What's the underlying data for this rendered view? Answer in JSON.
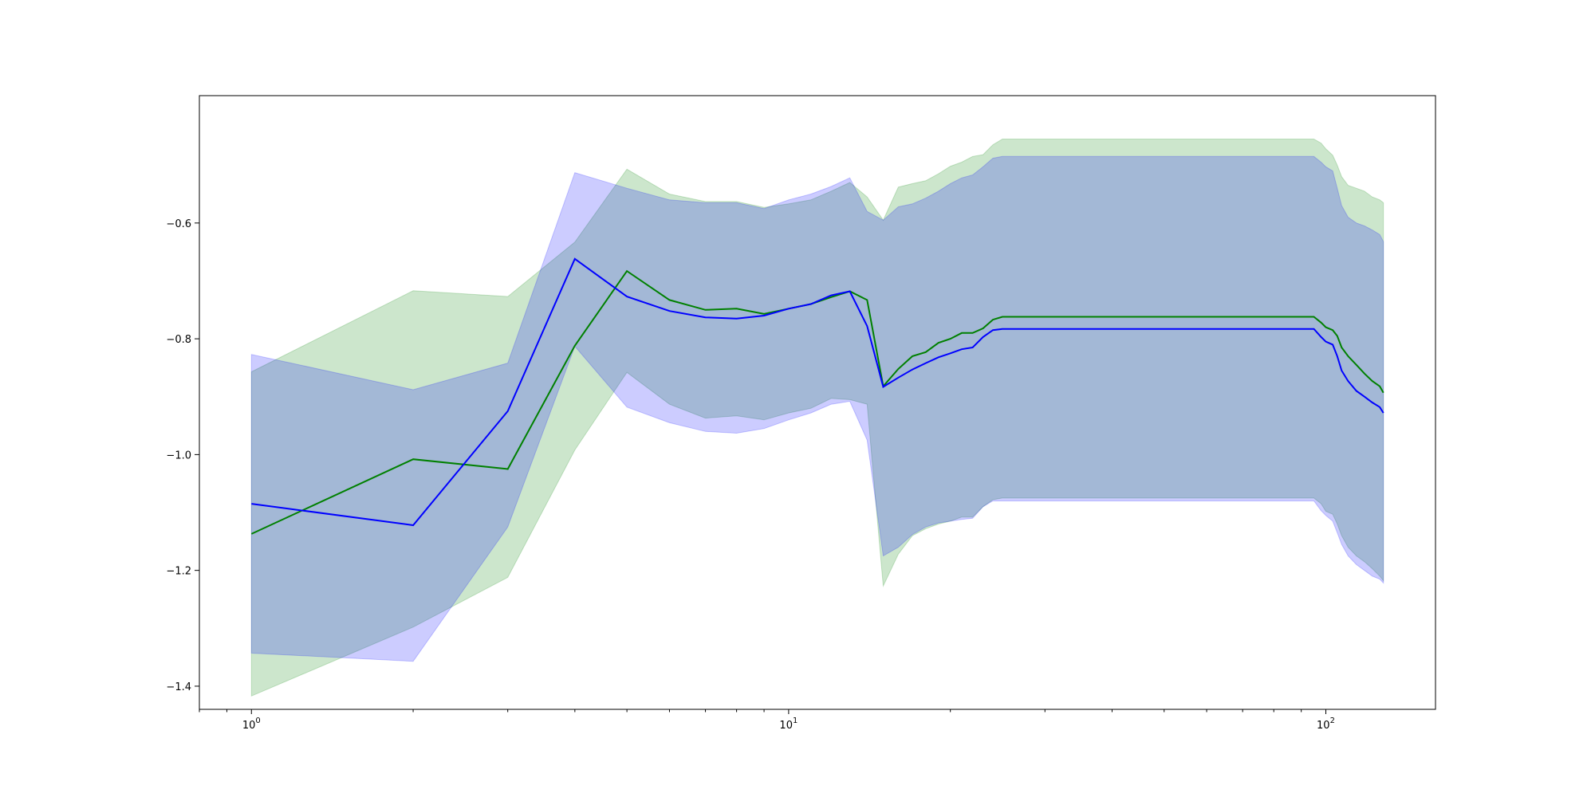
{
  "chart_data": {
    "type": "line",
    "title": "",
    "xlabel": "",
    "ylabel": "",
    "xscale": "log",
    "xlim": [
      0.8,
      160
    ],
    "ylim": [
      -1.44,
      -0.38
    ],
    "grid": false,
    "x_tick_values": [
      1,
      10,
      100
    ],
    "x_tick_labels": [
      {
        "base": "10",
        "exp": "0"
      },
      {
        "base": "10",
        "exp": "1"
      },
      {
        "base": "10",
        "exp": "2"
      }
    ],
    "y_ticks": [
      {
        "value": -0.6,
        "label": "−0.6"
      },
      {
        "value": -0.8,
        "label": "−0.8"
      },
      {
        "value": -1.0,
        "label": "−1.0"
      },
      {
        "value": -1.2,
        "label": "−1.2"
      },
      {
        "value": -1.4,
        "label": "−1.4"
      }
    ],
    "series": [
      {
        "color": "#008000",
        "band_color": "#008000",
        "band_opacity": 0.2,
        "points": [
          [
            1,
            -1.137,
            -0.857,
            -1.417
          ],
          [
            2,
            -1.008,
            -0.717,
            -1.298
          ],
          [
            3,
            -1.025,
            -0.727,
            -1.212
          ],
          [
            4,
            -0.812,
            -0.633,
            -0.992
          ],
          [
            5,
            -0.683,
            -0.507,
            -0.858
          ],
          [
            6,
            -0.733,
            -0.55,
            -0.913
          ],
          [
            7,
            -0.75,
            -0.563,
            -0.937
          ],
          [
            8,
            -0.748,
            -0.563,
            -0.933
          ],
          [
            9,
            -0.757,
            -0.573,
            -0.94
          ],
          [
            10,
            -0.748,
            -0.567,
            -0.928
          ],
          [
            11,
            -0.74,
            -0.56,
            -0.92
          ],
          [
            12,
            -0.728,
            -0.545,
            -0.903
          ],
          [
            13,
            -0.718,
            -0.53,
            -0.905
          ],
          [
            14,
            -0.733,
            -0.555,
            -0.913
          ],
          [
            15,
            -0.882,
            -0.595,
            -1.227
          ],
          [
            16,
            -0.852,
            -0.538,
            -1.172
          ],
          [
            17,
            -0.83,
            -0.532,
            -1.14
          ],
          [
            18,
            -0.823,
            -0.527,
            -1.128
          ],
          [
            19,
            -0.807,
            -0.515,
            -1.12
          ],
          [
            20,
            -0.8,
            -0.502,
            -1.115
          ],
          [
            21,
            -0.79,
            -0.495,
            -1.108
          ],
          [
            22,
            -0.79,
            -0.485,
            -1.108
          ],
          [
            23,
            -0.782,
            -0.482,
            -1.09
          ],
          [
            24,
            -0.767,
            -0.465,
            -1.078
          ],
          [
            25,
            -0.762,
            -0.455,
            -1.075
          ],
          [
            30,
            -0.762,
            -0.455,
            -1.075
          ],
          [
            40,
            -0.762,
            -0.455,
            -1.075
          ],
          [
            60,
            -0.762,
            -0.455,
            -1.075
          ],
          [
            80,
            -0.762,
            -0.455,
            -1.075
          ],
          [
            95,
            -0.762,
            -0.455,
            -1.075
          ],
          [
            98,
            -0.772,
            -0.462,
            -1.085
          ],
          [
            100,
            -0.78,
            -0.472,
            -1.098
          ],
          [
            103,
            -0.785,
            -0.483,
            -1.103
          ],
          [
            105,
            -0.795,
            -0.5,
            -1.12
          ],
          [
            107,
            -0.815,
            -0.52,
            -1.14
          ],
          [
            110,
            -0.83,
            -0.535,
            -1.16
          ],
          [
            114,
            -0.845,
            -0.54,
            -1.175
          ],
          [
            118,
            -0.86,
            -0.545,
            -1.185
          ],
          [
            122,
            -0.873,
            -0.555,
            -1.197
          ],
          [
            126,
            -0.882,
            -0.56,
            -1.21
          ],
          [
            128,
            -0.893,
            -0.565,
            -1.218
          ]
        ]
      },
      {
        "color": "#0000ff",
        "band_color": "#0000ff",
        "band_opacity": 0.2,
        "points": [
          [
            1,
            -1.085,
            -0.827,
            -1.343
          ],
          [
            2,
            -1.122,
            -0.888,
            -1.357
          ],
          [
            3,
            -0.925,
            -0.842,
            -1.125
          ],
          [
            4,
            -0.662,
            -0.513,
            -0.813
          ],
          [
            5,
            -0.727,
            -0.54,
            -0.918
          ],
          [
            6,
            -0.752,
            -0.56,
            -0.945
          ],
          [
            7,
            -0.763,
            -0.565,
            -0.96
          ],
          [
            8,
            -0.765,
            -0.565,
            -0.963
          ],
          [
            9,
            -0.76,
            -0.575,
            -0.955
          ],
          [
            10,
            -0.748,
            -0.56,
            -0.94
          ],
          [
            11,
            -0.74,
            -0.55,
            -0.928
          ],
          [
            12,
            -0.725,
            -0.537,
            -0.913
          ],
          [
            13,
            -0.718,
            -0.522,
            -0.908
          ],
          [
            14,
            -0.778,
            -0.58,
            -0.975
          ],
          [
            15,
            -0.883,
            -0.595,
            -1.175
          ],
          [
            16,
            -0.867,
            -0.572,
            -1.16
          ],
          [
            17,
            -0.853,
            -0.567,
            -1.138
          ],
          [
            18,
            -0.842,
            -0.557,
            -1.125
          ],
          [
            19,
            -0.832,
            -0.545,
            -1.118
          ],
          [
            20,
            -0.825,
            -0.532,
            -1.115
          ],
          [
            21,
            -0.818,
            -0.522,
            -1.112
          ],
          [
            22,
            -0.815,
            -0.517,
            -1.11
          ],
          [
            23,
            -0.797,
            -0.503,
            -1.09
          ],
          [
            24,
            -0.785,
            -0.488,
            -1.08
          ],
          [
            25,
            -0.783,
            -0.485,
            -1.08
          ],
          [
            30,
            -0.783,
            -0.485,
            -1.08
          ],
          [
            40,
            -0.783,
            -0.485,
            -1.08
          ],
          [
            60,
            -0.783,
            -0.485,
            -1.08
          ],
          [
            80,
            -0.783,
            -0.485,
            -1.08
          ],
          [
            95,
            -0.783,
            -0.485,
            -1.08
          ],
          [
            98,
            -0.797,
            -0.495,
            -1.097
          ],
          [
            100,
            -0.805,
            -0.503,
            -1.105
          ],
          [
            103,
            -0.81,
            -0.51,
            -1.115
          ],
          [
            105,
            -0.83,
            -0.54,
            -1.135
          ],
          [
            107,
            -0.855,
            -0.57,
            -1.155
          ],
          [
            110,
            -0.873,
            -0.59,
            -1.175
          ],
          [
            114,
            -0.89,
            -0.6,
            -1.19
          ],
          [
            118,
            -0.9,
            -0.605,
            -1.2
          ],
          [
            122,
            -0.91,
            -0.612,
            -1.21
          ],
          [
            126,
            -0.918,
            -0.62,
            -1.215
          ],
          [
            128,
            -0.928,
            -0.632,
            -1.222
          ]
        ]
      }
    ]
  }
}
